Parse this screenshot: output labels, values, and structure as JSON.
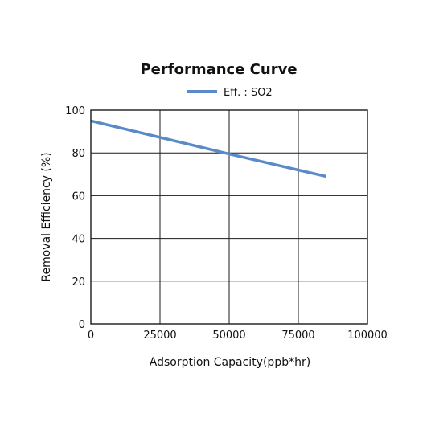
{
  "chart_data": {
    "type": "line",
    "title": "Performance Curve",
    "xlabel": "Adsorption Capacity(ppb*hr)",
    "ylabel": "Removal Efficiency (%)",
    "xlim": [
      0,
      100000
    ],
    "ylim": [
      0,
      100
    ],
    "x_ticks": [
      "0",
      "25000",
      "50000",
      "75000",
      "100000"
    ],
    "y_ticks": [
      "0",
      "20",
      "40",
      "60",
      "80",
      "100"
    ],
    "grid": true,
    "legend_position": "top-center",
    "series": [
      {
        "name": "Eff. : SO2",
        "color": "#5b8ac9",
        "x": [
          0,
          50000,
          85000
        ],
        "y": [
          95,
          79.5,
          69
        ]
      }
    ]
  }
}
